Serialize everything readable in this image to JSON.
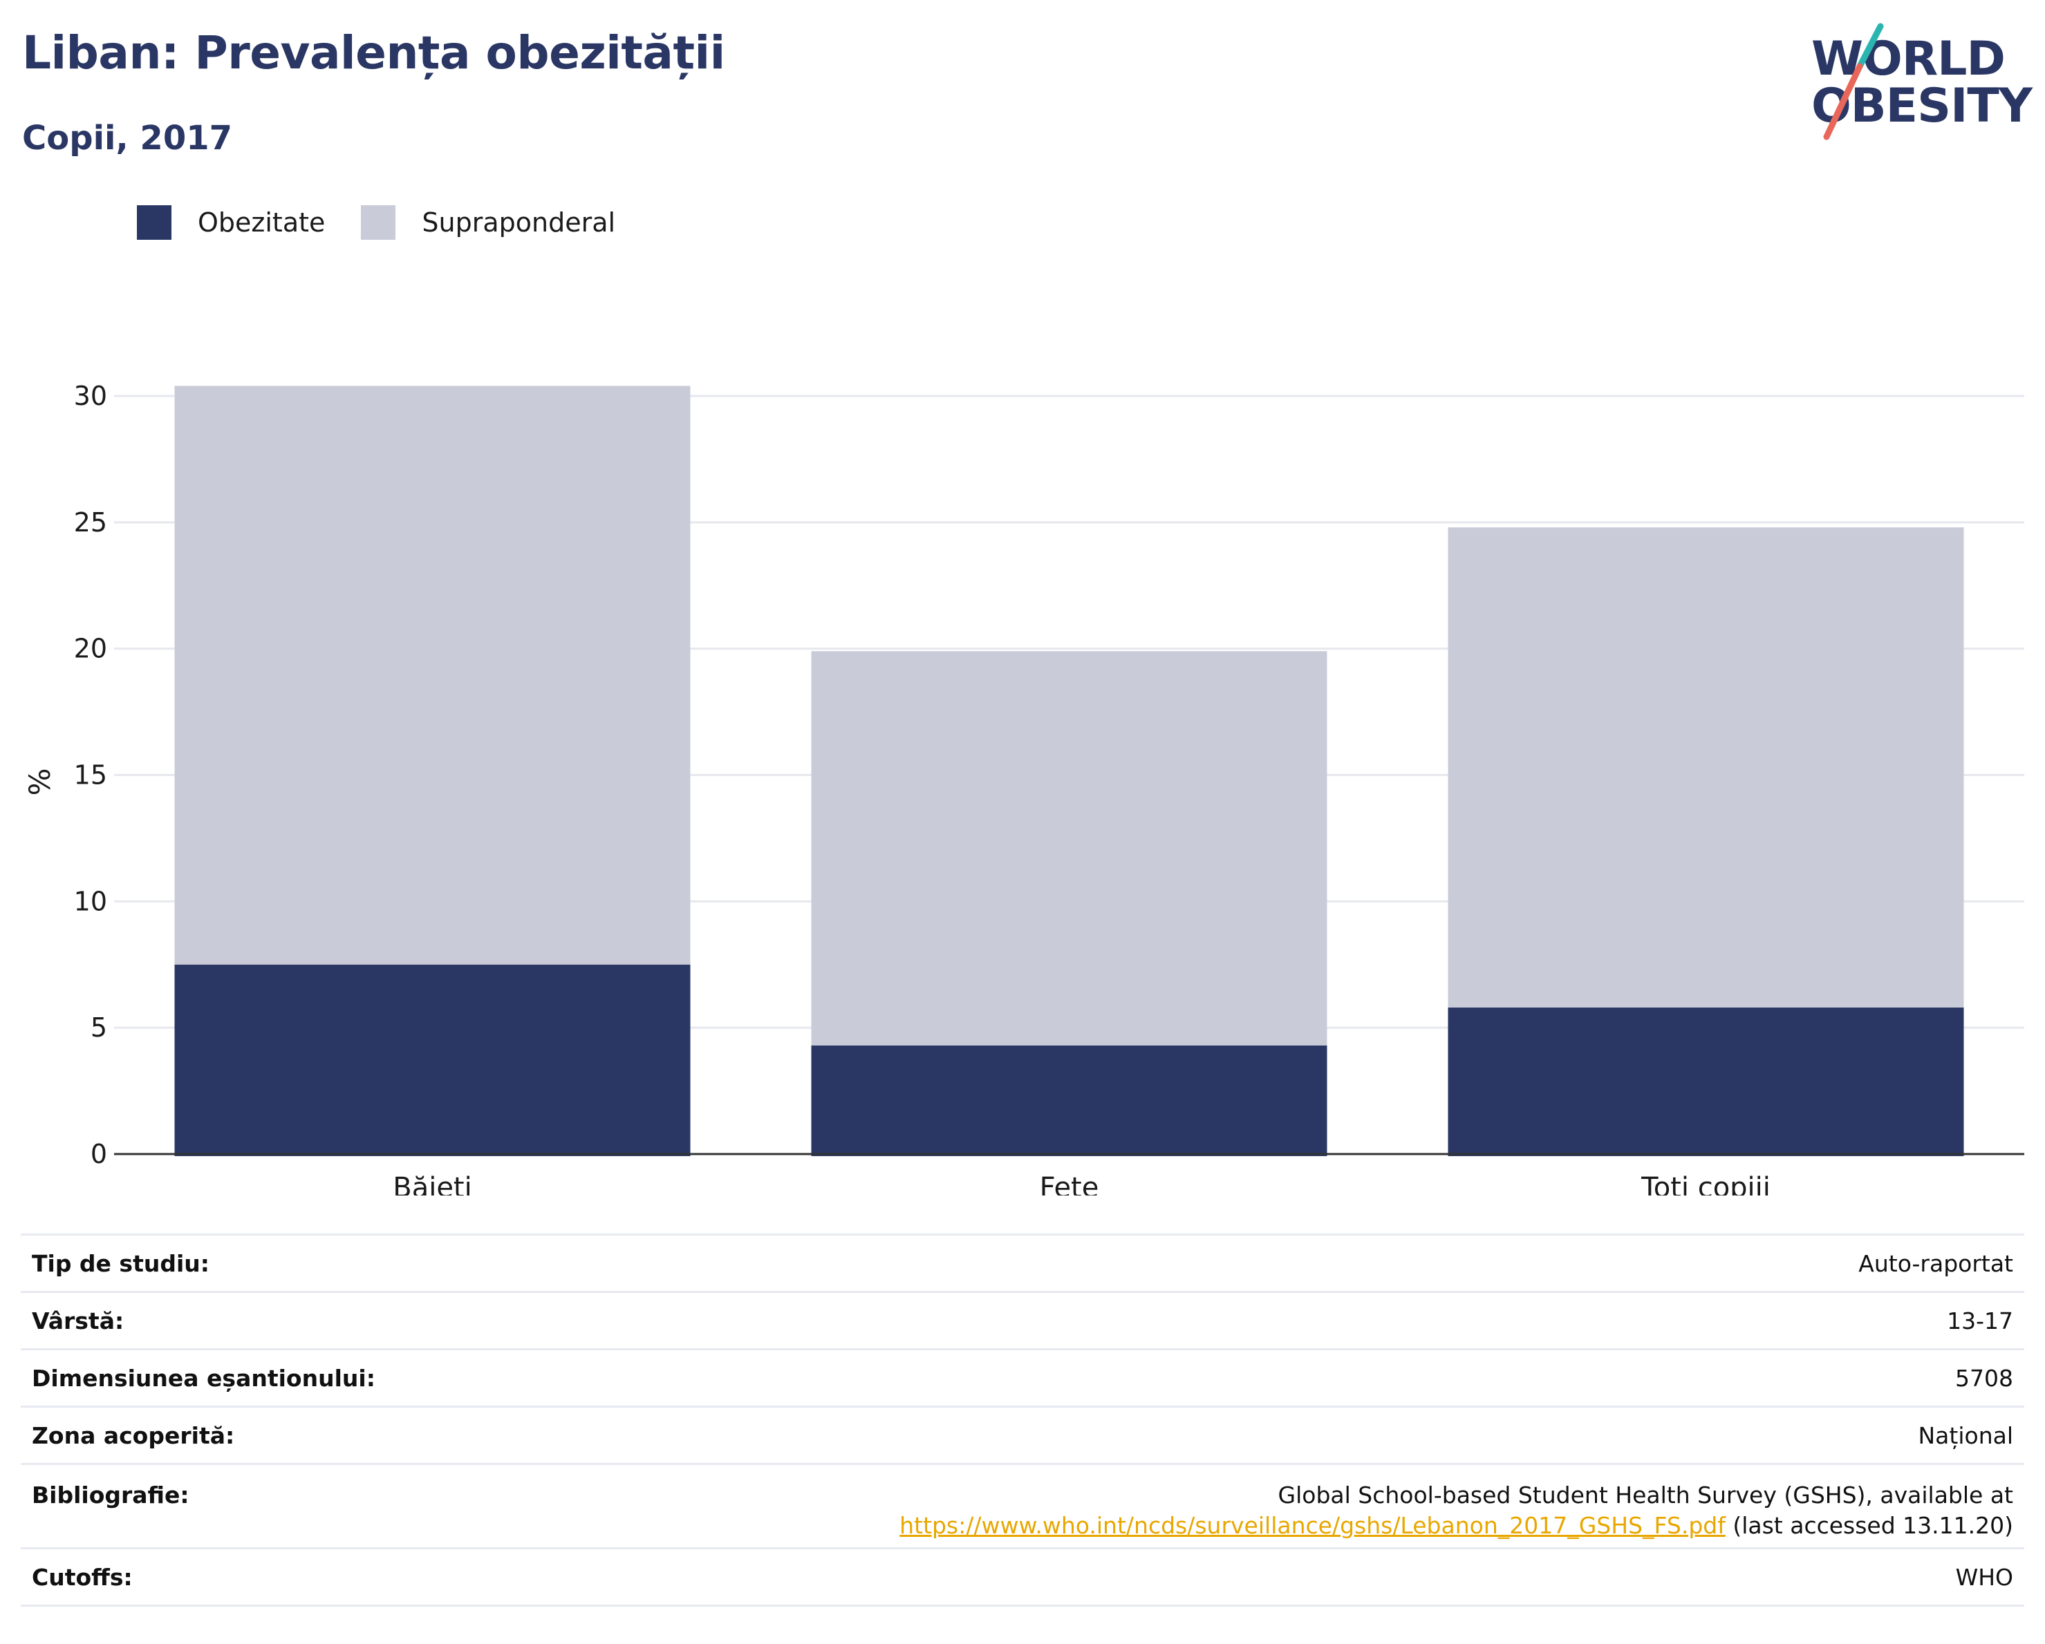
{
  "header": {
    "title": "Liban: Prevalența obezității",
    "subtitle": "Copii, 2017"
  },
  "logo": {
    "line1": "WORLD",
    "line2": "OBESITY",
    "colors": {
      "text": "#2a3764",
      "slash_top": "#2bb5b0",
      "slash_bottom": "#e8675a"
    }
  },
  "colors": {
    "obesity": "#2a3764",
    "overweight": "#c9ccd8",
    "grid": "#e6e8ee",
    "axis": "#333333",
    "link": "#e8a700"
  },
  "chart_data": {
    "type": "bar",
    "stacked": true,
    "categories": [
      "Băieți",
      "Fete",
      "Toți copiii"
    ],
    "series": [
      {
        "name": "Obezitate",
        "values": [
          7.5,
          4.3,
          5.8
        ]
      },
      {
        "name": "Supraponderal",
        "values": [
          22.9,
          15.6,
          19.0
        ]
      }
    ],
    "ylabel": "%",
    "ylim": [
      0,
      32
    ],
    "yticks": [
      "0",
      "5",
      "10",
      "15",
      "20",
      "25",
      "30"
    ],
    "legend_position": "top-left",
    "grid": true
  },
  "info": {
    "rows": [
      {
        "label": "Tip de studiu:",
        "value": "Auto-raportat"
      },
      {
        "label": "Vârstă:",
        "value": "13-17"
      },
      {
        "label": "Dimensiunea eșantionului:",
        "value": "5708"
      },
      {
        "label": "Zona acoperită:",
        "value": "Național"
      }
    ],
    "bibliography": {
      "label": "Bibliografie:",
      "line1": "Global School-based Student Health Survey (GSHS), available at",
      "link": "https://www.who.int/ncds/surveillance/gshs/Lebanon_2017_GSHS_FS.pdf",
      "after_link": " (last accessed 13.11.20)"
    },
    "cutoffs": {
      "label": "Cutoffs:",
      "value": "WHO"
    }
  }
}
